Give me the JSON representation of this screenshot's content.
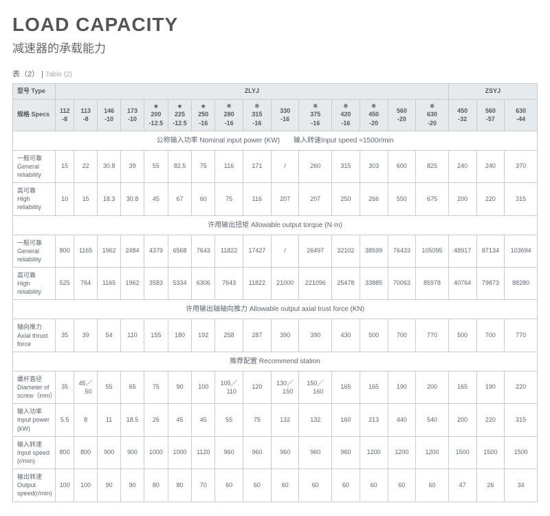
{
  "header": {
    "title_en": "LOAD CAPACITY",
    "title_cn": "减速器的承载能力",
    "table_label_cn": "表（2）",
    "table_label_en": "Table (2)"
  },
  "columns": {
    "type_label": "型号 Type",
    "specs_label": "规格 Specs",
    "group_zlyj": "ZLYJ",
    "group_zsyj": "ZSYJ",
    "models": [
      {
        "star": "",
        "name": "112\n-8"
      },
      {
        "star": "",
        "name": "113\n-8"
      },
      {
        "star": "",
        "name": "146\n-10"
      },
      {
        "star": "",
        "name": "173\n-10"
      },
      {
        "star": "★",
        "name": "200\n-12.5"
      },
      {
        "star": "★",
        "name": "225\n-12.5"
      },
      {
        "star": "★",
        "name": "250\n-16"
      },
      {
        "star": "※",
        "name": "280\n-16"
      },
      {
        "star": "※",
        "name": "315\n-16"
      },
      {
        "star": "",
        "name": "330\n-16"
      },
      {
        "star": "※",
        "name": "375\n-16"
      },
      {
        "star": "※",
        "name": "420\n-16"
      },
      {
        "star": "※",
        "name": "450\n-20"
      },
      {
        "star": "",
        "name": "560\n-20"
      },
      {
        "star": "※",
        "name": "630\n-20"
      },
      {
        "star": "",
        "name": "450\n-32"
      },
      {
        "star": "",
        "name": "560\n-57"
      },
      {
        "star": "",
        "name": "630\n-44"
      }
    ]
  },
  "sections": [
    {
      "heading": "公称输入功率 Nominal input power (KW)　　输入转速Input speed =1500r/min",
      "rows": [
        {
          "label": "一般可靠\nGeneral reliability",
          "v": [
            "15",
            "22",
            "30.8",
            "39",
            "55",
            "82.5",
            "75",
            "116",
            "171",
            "/",
            "260",
            "315",
            "303",
            "600",
            "825",
            "240",
            "240",
            "370"
          ]
        },
        {
          "label": "高可靠\nHigh reliability",
          "v": [
            "10",
            "15",
            "18.3",
            "30.8",
            "45",
            "67",
            "60",
            "75",
            "116",
            "207",
            "207",
            "250",
            "266",
            "550",
            "675",
            "200",
            "220",
            "315"
          ]
        }
      ]
    },
    {
      "heading": "许用输出扭矩 Allowable output torque (N·m)",
      "rows": [
        {
          "label": "一般可靠\nGeneral reliability",
          "v": [
            "800",
            "1165",
            "1962",
            "2484",
            "4379",
            "6568",
            "7643",
            "11822",
            "17427",
            "/",
            "26497",
            "32102",
            "38599",
            "76433",
            "105095",
            "48917",
            "87134",
            "103694"
          ]
        },
        {
          "label": "高可靠\nHigh reliability",
          "v": [
            "525",
            "764",
            "1165",
            "1962",
            "3583",
            "5334",
            "6306",
            "7643",
            "11822",
            "21000",
            "221096",
            "25478",
            "33885",
            "70063",
            "85978",
            "40764",
            "79873",
            "88280"
          ]
        }
      ]
    },
    {
      "heading": "许用输出轴轴向推力 Allowable output axial trust force (KN)",
      "rows": [
        {
          "label": "轴向推力\nAxial thrust force",
          "v": [
            "35",
            "39",
            "54",
            "110",
            "155",
            "180",
            "192",
            "258",
            "287",
            "390",
            "390",
            "430",
            "500",
            "700",
            "770",
            "500",
            "700",
            "770"
          ]
        }
      ]
    },
    {
      "heading": "推荐配置 Recommend station",
      "rows": [
        {
          "label": "螺杆直径\nDiameter of\nscrew（mm）",
          "v": [
            "35",
            "45／50",
            "55",
            "65",
            "75",
            "90",
            "100",
            "105／110",
            "120",
            "130／150",
            "150／160",
            "165",
            "165",
            "190",
            "200",
            "165",
            "190",
            "220"
          ]
        },
        {
          "label": "输入功率\nInput power (kW)",
          "v": [
            "5.5",
            "8",
            "11",
            "18.5",
            "26",
            "45",
            "45",
            "55",
            "75",
            "132",
            "132",
            "160",
            "213",
            "440",
            "540",
            "200",
            "220",
            "315"
          ]
        },
        {
          "label": "输入转速\nInput speed (r/min)",
          "v": [
            "800",
            "800",
            "900",
            "900",
            "1000",
            "1000",
            "1120",
            "960",
            "960",
            "960",
            "960",
            "960",
            "1200",
            "1200",
            "1200",
            "1500",
            "1500",
            "1500"
          ]
        },
        {
          "label": "输出转速\nOutput speed(r/min)",
          "v": [
            "100",
            "100",
            "90",
            "90",
            "80",
            "80",
            "70",
            "60",
            "60",
            "60",
            "60",
            "60",
            "60",
            "60",
            "60",
            "47",
            "26",
            "34"
          ]
        }
      ]
    }
  ]
}
